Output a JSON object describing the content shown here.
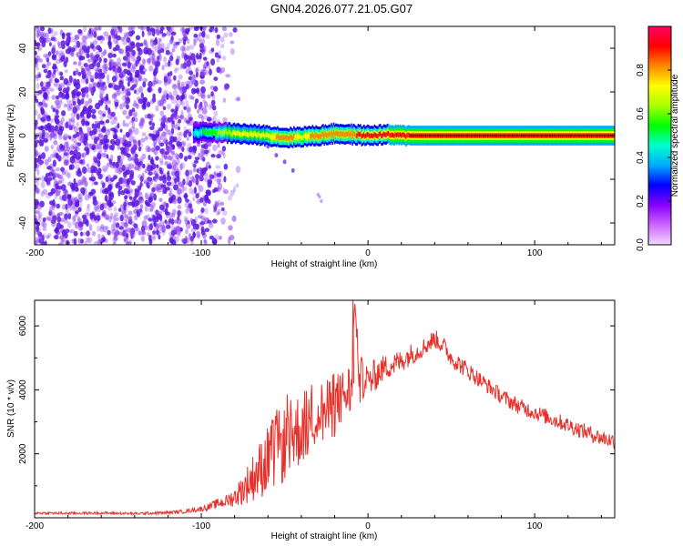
{
  "title": "GN04.2026.077.21.05.G07",
  "colors": {
    "snr_line": "#e8302a",
    "spectrogram_sparse": "#8a3cf0",
    "spectrogram_dense": "#5a18e0",
    "colorbar_stops": [
      "#f2d8ff",
      "#cc66ff",
      "#8800ff",
      "#0000ff",
      "#00aaff",
      "#00ffcc",
      "#00ff00",
      "#aaff00",
      "#ffff00",
      "#ff8800",
      "#ff0000",
      "#ff0066"
    ]
  },
  "chart_data": [
    {
      "type": "heatmap",
      "title": "GN04.2026.077.21.05.G07",
      "xlabel": "Height of straight line (km)",
      "ylabel": "Frequency (Hz)",
      "xlim": [
        -200,
        148
      ],
      "ylim": [
        -50,
        50
      ],
      "xticks": [
        -200,
        -100,
        0,
        100
      ],
      "yticks": [
        -40,
        -20,
        0,
        20,
        40
      ],
      "colorbar": {
        "label": "Normalized spectral amplitude",
        "range": [
          0,
          1
        ],
        "ticks": [
          "0.0",
          "0.2",
          "0.4",
          "0.6",
          "0.8"
        ]
      },
      "noise_region_x": [
        -200,
        -85
      ],
      "ridge": {
        "x": [
          -105,
          -100,
          -90,
          -80,
          -70,
          -60,
          -50,
          -40,
          -30,
          -20,
          -10,
          0,
          10,
          20,
          30,
          50,
          80,
          100,
          120,
          148
        ],
        "freq": [
          1,
          1.5,
          1.5,
          1,
          0.5,
          0,
          -1,
          -0.5,
          0,
          1,
          0.5,
          0,
          0.5,
          0,
          0,
          0,
          0,
          0,
          0,
          0
        ],
        "amplitude": [
          0.4,
          0.5,
          0.6,
          0.7,
          0.7,
          0.75,
          0.8,
          0.75,
          0.8,
          0.8,
          0.85,
          0.9,
          0.9,
          0.95,
          0.95,
          0.95,
          0.95,
          0.95,
          0.95,
          0.95
        ]
      },
      "branch": {
        "x": [
          -60,
          -55,
          -50,
          -45
        ],
        "freq": [
          -5,
          -9,
          -12,
          -16
        ]
      },
      "outliers": {
        "x": [
          -30,
          -29,
          -28
        ],
        "freq": [
          -27,
          -28,
          -30
        ]
      }
    },
    {
      "type": "line",
      "xlabel": "Height of straight line (km)",
      "ylabel": "SNR (10 * v/v)",
      "xlim": [
        -200,
        148
      ],
      "ylim": [
        0,
        6800
      ],
      "xticks": [
        -200,
        -100,
        0,
        100
      ],
      "yticks": [
        2000,
        4000,
        6000
      ],
      "series": [
        {
          "x": [
            -200,
            -180,
            -160,
            -140,
            -120,
            -110,
            -100,
            -95,
            -90,
            -85,
            -80,
            -75,
            -70,
            -65,
            -60,
            -55,
            -50,
            -45,
            -40,
            -35,
            -30,
            -25,
            -20,
            -15,
            -10,
            -8,
            -5,
            0,
            5,
            10,
            15,
            20,
            25,
            30,
            35,
            40,
            45,
            50,
            60,
            70,
            80,
            90,
            100,
            110,
            120,
            130,
            140,
            148
          ],
          "values": [
            150,
            140,
            150,
            130,
            160,
            200,
            280,
            350,
            450,
            520,
            650,
            900,
            1200,
            1500,
            1800,
            2100,
            2300,
            2600,
            2800,
            3100,
            3300,
            3300,
            3500,
            3800,
            4000,
            6800,
            4300,
            4200,
            4500,
            4700,
            4800,
            4900,
            5100,
            5200,
            5400,
            5600,
            5400,
            5000,
            4600,
            4200,
            3800,
            3500,
            3300,
            3100,
            2900,
            2700,
            2500,
            2400
          ],
          "noise_amplitude": [
            40,
            40,
            40,
            40,
            50,
            60,
            80,
            120,
            160,
            200,
            300,
            500,
            700,
            900,
            1100,
            1200,
            1200,
            1200,
            1200,
            1100,
            1100,
            1000,
            1000,
            900,
            900,
            0,
            800,
            600,
            500,
            400,
            400,
            350,
            350,
            300,
            300,
            300,
            300,
            300,
            280,
            250,
            250,
            250,
            250,
            250,
            250,
            250,
            250,
            250
          ]
        }
      ]
    }
  ]
}
